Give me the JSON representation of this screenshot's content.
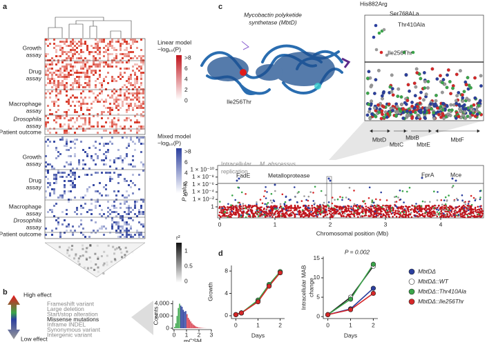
{
  "panel_a": {
    "label": "a",
    "rows": [
      [
        "Growth",
        "assay"
      ],
      [
        "Drug",
        "assay"
      ],
      [
        "Macrophage",
        "assay"
      ],
      [
        "Drosophila",
        "assay"
      ],
      [
        "Patient outcome"
      ]
    ],
    "linear_legend": {
      "title": [
        "Linear model",
        "−log₁₀(P)"
      ],
      "ticks": [
        ">8",
        "6",
        "4",
        "2",
        "0"
      ]
    },
    "mixed_legend": {
      "title": [
        "Mixed model",
        "−log₁₀(P)"
      ],
      "ticks": [
        ">8",
        "6",
        "4",
        "2",
        "0"
      ]
    },
    "ld_legend": {
      "title": "r²",
      "ticks": [
        "1",
        "0.5",
        "0"
      ]
    }
  },
  "panel_b": {
    "label": "b",
    "high": "High effect",
    "low": "Low effect",
    "variants": [
      "Frameshift variant",
      "Large deletion",
      "Start/stop alteration",
      "Missense mutations",
      "Inframe INDEL",
      "Synonymous variant",
      "Intergenic variant"
    ],
    "histogram": {
      "type": "histogram",
      "y_label": "Counts",
      "x_label": "mCSM",
      "bins": [
        0,
        0.1,
        0.2,
        0.3,
        0.4,
        0.5,
        0.6,
        0.7,
        0.8,
        0.9,
        1.0,
        1.1,
        1.2,
        1.3,
        1.4,
        1.5,
        1.6,
        1.7,
        1.8,
        1.9,
        2.0,
        2.1,
        2.2,
        2.3,
        2.4,
        2.5,
        2.6
      ],
      "counts": [
        200,
        800,
        2000,
        3300,
        4000,
        3700,
        3500,
        3000,
        2700,
        2800,
        2300,
        1700,
        1400,
        1100,
        800,
        600,
        450,
        300,
        220,
        150,
        100,
        70,
        50,
        30,
        20,
        10
      ],
      "colors": [
        "#3aa54a",
        "#3aa54a",
        "#3aa54a",
        "#3aa54a",
        "#3aa54a",
        "#2b3f9e",
        "#2b3f9e",
        "#2b3f9e",
        "#2b3f9e",
        "#2b3f9e",
        "#d8404f",
        "#d8404f",
        "#d8404f",
        "#d8404f",
        "#d8404f",
        "#d8404f",
        "#d8404f",
        "#d8404f",
        "#d8404f",
        "#d8404f",
        "#d8404f",
        "#d8404f",
        "#d8404f",
        "#d8404f",
        "#d8404f",
        "#d8404f"
      ],
      "xlim": [
        0,
        3
      ],
      "xticks": [
        0,
        1,
        2,
        3
      ],
      "ylim": [
        0,
        4500
      ],
      "yticks": [
        0,
        {
          "value": 2000,
          "label": "2,000"
        },
        {
          "value": 4000,
          "label": "4,000"
        }
      ]
    }
  },
  "panel_c": {
    "label": "c",
    "protein_title": [
      "Mycobactin polyketide",
      "synthetase (MbtD)"
    ],
    "protein_mutation": "Ile256Thr",
    "zoom_labels": [
      "His882Arg",
      "Ser768ALa",
      "Thr410Ala",
      "Ile256Thr"
    ],
    "genes": [
      "MbtD",
      "MbtC",
      "MbtB",
      "MbtE",
      "MbtF"
    ],
    "manhattan": {
      "title": [
        "Intracellular",
        "M. abscessus",
        "replication"
      ],
      "y_label": "P value",
      "yticks": [
        "1 × 10⁻¹⁰",
        "1 × 10⁻⁸",
        "1 × 10⁻⁶",
        "1 × 10⁻⁴",
        "1 × 10⁻²",
        "1"
      ],
      "x_label": "Chromosomal position (Mb)",
      "xticks": [
        0,
        1,
        2,
        3,
        4
      ],
      "gene_labels": [
        "FadE",
        "Metalloprotease",
        "FprA",
        "Mce"
      ]
    }
  },
  "panel_d": {
    "label": "d",
    "growth": {
      "type": "line",
      "y_label": "Growth",
      "x_label": "Days",
      "x": [
        0,
        0.25,
        1,
        1.5,
        2
      ],
      "xlim": [
        -0.2,
        2.2
      ],
      "xticks": [
        0,
        1,
        2
      ],
      "ylim": [
        -0.5,
        9
      ],
      "yticks": [
        0,
        4,
        8
      ],
      "series": [
        {
          "name": "MbtDΔ",
          "color": "#2b3f9e",
          "values": [
            0.2,
            0.5,
            2.7,
            5.5,
            7.8
          ]
        },
        {
          "name": "MbtDΔ::WT",
          "color": "#ffffff",
          "values": [
            0.2,
            0.5,
            2.6,
            5.4,
            7.7
          ]
        },
        {
          "name": "MbtDΔ::Thr410Ala",
          "color": "#3aa54a",
          "values": [
            0.2,
            0.5,
            2.8,
            5.6,
            7.9
          ]
        },
        {
          "name": "MbtDΔ::Ile256Thr",
          "color": "#d62728",
          "values": [
            0.2,
            0.5,
            2.5,
            5.3,
            7.7
          ]
        }
      ]
    },
    "intracellular": {
      "type": "line",
      "y_label": [
        "Intracellular MAB",
        "change"
      ],
      "x_label": "Days",
      "annotation": "P = 0.002",
      "x": [
        0,
        1,
        2
      ],
      "xlim": [
        -0.2,
        2.2
      ],
      "xticks": [
        0,
        1,
        2
      ],
      "ylim": [
        -0.5,
        15.5
      ],
      "yticks": [
        0,
        5,
        10,
        15
      ],
      "series": [
        {
          "name": "MbtDΔ",
          "color": "#2b3f9e",
          "values": [
            0.5,
            2,
            7.3
          ]
        },
        {
          "name": "MbtDΔ::WT",
          "color": "#ffffff",
          "values": [
            0.5,
            5,
            13
          ]
        },
        {
          "name": "MbtDΔ::Thr410Ala",
          "color": "#3aa54a",
          "values": [
            0.5,
            4.5,
            13.5
          ]
        },
        {
          "name": "MbtDΔ::Ile256Thr",
          "color": "#d62728",
          "values": [
            0.5,
            1.8,
            6
          ]
        }
      ]
    }
  }
}
